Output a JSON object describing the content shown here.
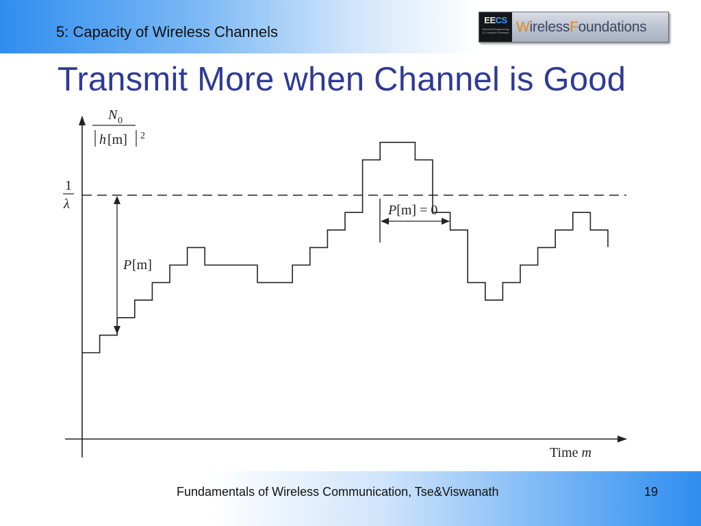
{
  "header": {
    "section": "5: Capacity of Wireless Channels",
    "logo": {
      "mark_left": "EE",
      "mark_right": "CS",
      "mark_sub_line1": "Electrical Engineering",
      "mark_sub_line2": "& Computer Sciences",
      "wordmark_w": "W",
      "wordmark_mid": "ireless ",
      "wordmark_f": "F",
      "wordmark_end": "oundations"
    }
  },
  "title": "Transmit More when Channel is Good",
  "figure": {
    "y_label": {
      "numerator_symbol": "N",
      "numerator_subscript": "0",
      "denominator_symbol": "h",
      "denominator_index": "[m]",
      "exponent": "2"
    },
    "water_level_label": {
      "numerator": "1",
      "denominator": "λ"
    },
    "power_label": {
      "symbol": "P",
      "index": "[m]"
    },
    "zero_power_label": {
      "symbol": "P",
      "index": "[m]",
      "relation": " = 0"
    },
    "x_label": {
      "word": "Time ",
      "symbol": "m"
    },
    "water_level": 1.0,
    "noise_profile": [
      {
        "m": 0,
        "level": 0.0
      },
      {
        "m": 1,
        "level": 0.1
      },
      {
        "m": 2,
        "level": 0.2
      },
      {
        "m": 3,
        "level": 0.3
      },
      {
        "m": 4,
        "level": 0.4
      },
      {
        "m": 5,
        "level": 0.5
      },
      {
        "m": 6,
        "level": 0.6
      },
      {
        "m": 7,
        "level": 0.5
      },
      {
        "m": 8,
        "level": 0.5
      },
      {
        "m": 9,
        "level": 0.5
      },
      {
        "m": 10,
        "level": 0.4
      },
      {
        "m": 11,
        "level": 0.4
      },
      {
        "m": 12,
        "level": 0.5
      },
      {
        "m": 13,
        "level": 0.6
      },
      {
        "m": 14,
        "level": 0.7
      },
      {
        "m": 15,
        "level": 0.8
      },
      {
        "m": 16,
        "level": 1.1
      },
      {
        "m": 17,
        "level": 1.2
      },
      {
        "m": 18,
        "level": 1.2
      },
      {
        "m": 19,
        "level": 1.1
      },
      {
        "m": 20,
        "level": 0.8
      },
      {
        "m": 21,
        "level": 0.7
      },
      {
        "m": 22,
        "level": 0.4
      },
      {
        "m": 23,
        "level": 0.3
      },
      {
        "m": 24,
        "level": 0.4
      },
      {
        "m": 25,
        "level": 0.5
      },
      {
        "m": 26,
        "level": 0.6
      },
      {
        "m": 27,
        "level": 0.7
      },
      {
        "m": 28,
        "level": 0.8
      },
      {
        "m": 29,
        "level": 0.7
      }
    ]
  },
  "footer": {
    "text": "Fundamentals of Wireless Communication, Tse&Viswanath",
    "page": "19"
  }
}
